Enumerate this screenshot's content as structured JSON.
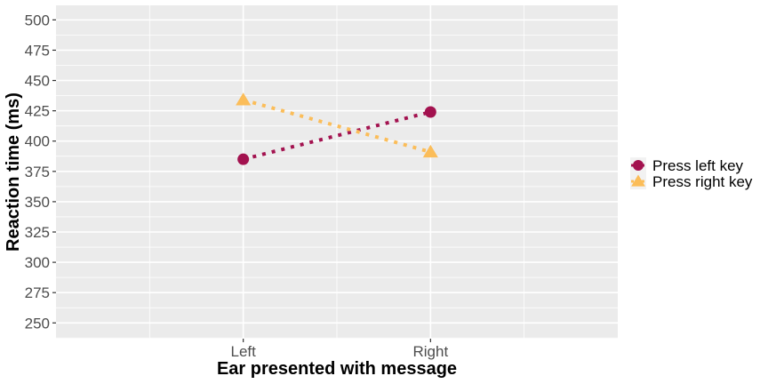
{
  "chart_data": {
    "type": "line",
    "title": "",
    "xlabel": "Ear presented with message",
    "ylabel": "Reaction time (ms)",
    "categories": [
      "Left",
      "Right"
    ],
    "y_ticks": [
      "250",
      "275",
      "300",
      "325",
      "350",
      "375",
      "400",
      "425",
      "450",
      "475",
      "500"
    ],
    "ylim": [
      237,
      512
    ],
    "grid": true,
    "legend_position": "right",
    "series": [
      {
        "name": "Press left key",
        "values": [
          385,
          424
        ],
        "color": "#A3124F",
        "marker": "circle",
        "line_style": "dotted"
      },
      {
        "name": "Press right key",
        "values": [
          434,
          391
        ],
        "color": "#FBBD59",
        "marker": "triangle",
        "line_style": "dotted"
      }
    ]
  }
}
